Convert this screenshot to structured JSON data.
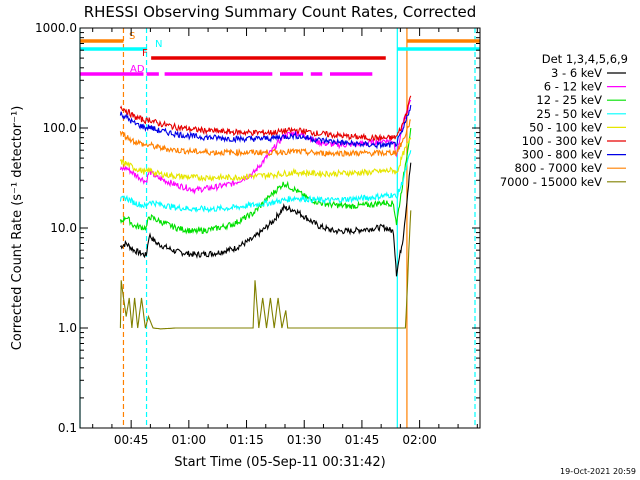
{
  "chart_data": {
    "type": "line",
    "title": "RHESSI Observing Summary Count Rates, Corrected",
    "xlabel": "Start Time (05-Sep-11 00:31:42)",
    "ylabel": "Corrected Count Rate (s⁻¹ detector⁻¹)",
    "yscale": "log",
    "ylim": [
      0.1,
      1000.0
    ],
    "xlim_minutes": [
      0,
      104
    ],
    "x_tick_labels": [
      "00:45",
      "01:00",
      "01:15",
      "01:30",
      "01:45",
      "02:00"
    ],
    "x_tick_minutes": [
      13.3,
      28.3,
      43.3,
      58.3,
      73.3,
      88.3
    ],
    "y_tick_labels": [
      "0.1",
      "1.0",
      "10.0",
      "100.0",
      "1000.0"
    ],
    "y_tick_values": [
      0.1,
      1.0,
      10.0,
      100.0,
      1000.0
    ],
    "legend_title": "Det 1,3,4,5,6,9",
    "legend_position": "right",
    "timestamp": "19-Oct-2021 20:59",
    "state_bars": [
      {
        "label": "S",
        "color": "#ff8000",
        "segments": [
          [
            0,
            11.3
          ],
          [
            85,
            104
          ]
        ]
      },
      {
        "label": "N",
        "color": "#00ffff",
        "segments": [
          [
            0,
            17.3
          ],
          [
            82.5,
            104
          ]
        ]
      },
      {
        "label": "F",
        "color": "#e60000",
        "segments": [
          [
            18.5,
            79.5
          ]
        ]
      },
      {
        "label": "AD",
        "color": "#ff00ff",
        "segments": [
          [
            0,
            16.5
          ],
          [
            17.3,
            20.5
          ],
          [
            22,
            50
          ],
          [
            52,
            58
          ],
          [
            60,
            63
          ],
          [
            65,
            76
          ]
        ]
      }
    ],
    "vertical_lines": [
      {
        "x": 0,
        "color": "#00ffff",
        "style": "solid"
      },
      {
        "x": 11.3,
        "color": "#ff8000",
        "style": "dashed"
      },
      {
        "x": 17.3,
        "color": "#00ffff",
        "style": "dashed"
      },
      {
        "x": 82.5,
        "color": "#00ffff",
        "style": "solid"
      },
      {
        "x": 85,
        "color": "#ff8000",
        "style": "solid"
      },
      {
        "x": 102.7,
        "color": "#00ffff",
        "style": "dashed"
      }
    ],
    "series": [
      {
        "name": "3 - 6 keV",
        "color": "#000000",
        "x": [
          10.5,
          12,
          14,
          17.2,
          18,
          20,
          25,
          30,
          35,
          40,
          45,
          50,
          53,
          56,
          59,
          62,
          66,
          70,
          75,
          79,
          81.5,
          82.3,
          84,
          86
        ],
        "y": [
          6.5,
          7,
          6,
          5.3,
          8.5,
          7,
          5.8,
          5.4,
          5.6,
          6.2,
          7.8,
          11.5,
          16,
          15,
          12.5,
          10.5,
          9.3,
          9.3,
          9.8,
          10.2,
          9.2,
          3.5,
          8,
          45
        ]
      },
      {
        "name": "6 - 12 keV",
        "color": "#ff00ff",
        "x": [
          10.5,
          12,
          14,
          17.2,
          18,
          20,
          25,
          30,
          35,
          40,
          45,
          50,
          53,
          56,
          59,
          62,
          66,
          70,
          75,
          79,
          81.5,
          82.3,
          84,
          86
        ],
        "y": [
          38,
          40,
          35,
          29,
          37,
          32,
          27,
          24,
          25.5,
          28,
          35,
          60,
          84,
          90,
          82,
          72,
          68,
          68,
          71,
          75,
          74,
          55,
          110,
          190
        ]
      },
      {
        "name": "12 - 25 keV",
        "color": "#00e000",
        "x": [
          10.5,
          12,
          14,
          17.2,
          18,
          20,
          25,
          30,
          35,
          40,
          45,
          50,
          53,
          56,
          59,
          62,
          66,
          70,
          75,
          79,
          81.5,
          82.3,
          84,
          86
        ],
        "y": [
          11.5,
          13,
          10.5,
          10,
          13,
          12,
          10,
          9.2,
          9.8,
          11,
          14,
          22,
          28,
          24,
          20,
          18,
          17,
          16.5,
          17,
          18,
          17.5,
          11,
          30,
          100
        ]
      },
      {
        "name": "25 - 50 keV",
        "color": "#00ffff",
        "x": [
          10.5,
          12,
          14,
          17.2,
          18,
          20,
          25,
          30,
          35,
          40,
          45,
          50,
          53,
          56,
          59,
          62,
          66,
          70,
          75,
          79,
          81.5,
          82.3,
          84,
          86
        ],
        "y": [
          19,
          20,
          18,
          16.5,
          18.5,
          17.5,
          16,
          15.5,
          15.5,
          16,
          17,
          18,
          19,
          20,
          19.5,
          19,
          19,
          19.5,
          20,
          21,
          21.5,
          20,
          30,
          60
        ]
      },
      {
        "name": "50 - 100 keV",
        "color": "#e6e600",
        "x": [
          10.5,
          12,
          14,
          17.2,
          18,
          20,
          25,
          30,
          35,
          40,
          45,
          50,
          53,
          56,
          59,
          62,
          66,
          70,
          75,
          79,
          81.5,
          82.3,
          84,
          86
        ],
        "y": [
          46,
          44,
          40,
          36,
          38,
          35,
          33,
          32,
          32,
          32,
          33,
          34,
          35,
          36,
          35.5,
          35,
          35,
          35.5,
          36,
          37,
          38,
          35,
          55,
          80
        ]
      },
      {
        "name": "100 - 300 keV",
        "color": "#e60000",
        "x": [
          10.5,
          12,
          14,
          17.2,
          18,
          20,
          25,
          30,
          35,
          40,
          45,
          50,
          53,
          56,
          59,
          62,
          66,
          70,
          75,
          79,
          81.5,
          82.3,
          84,
          86
        ],
        "y": [
          165,
          150,
          130,
          118,
          122,
          112,
          102,
          96,
          93,
          91,
          90,
          90,
          93,
          95,
          92,
          88,
          85,
          82,
          80,
          79,
          80,
          82,
          110,
          210
        ]
      },
      {
        "name": "300 - 800 keV",
        "color": "#0000e6",
        "x": [
          10.5,
          12,
          14,
          17.2,
          18,
          20,
          25,
          30,
          35,
          40,
          45,
          50,
          53,
          56,
          59,
          62,
          66,
          70,
          75,
          79,
          81.5,
          82.3,
          84,
          86
        ],
        "y": [
          140,
          128,
          112,
          100,
          103,
          95,
          87,
          82,
          80,
          78,
          78,
          79,
          82,
          84,
          80,
          76,
          73,
          70,
          68,
          67,
          68,
          70,
          95,
          170
        ]
      },
      {
        "name": "800 - 7000 keV",
        "color": "#ff8000",
        "x": [
          10.5,
          12,
          14,
          17.2,
          18,
          20,
          25,
          30,
          35,
          40,
          45,
          50,
          53,
          56,
          59,
          62,
          66,
          70,
          75,
          79,
          81.5,
          82.3,
          84,
          86
        ],
        "y": [
          90,
          82,
          74,
          67,
          68,
          64,
          60,
          58,
          57,
          57,
          57,
          57,
          58,
          58,
          57,
          56,
          56,
          56,
          56,
          56,
          57,
          57,
          75,
          120
        ]
      },
      {
        "name": "7000 - 15000 keV",
        "color": "#808000",
        "x": [
          10.5,
          10.7,
          11.3,
          12,
          12.8,
          13.5,
          14.2,
          15,
          16,
          17,
          17.8,
          19,
          21,
          25,
          30,
          45,
          45.5,
          46.5,
          47.5,
          48.5,
          49.5,
          50.5,
          51.5,
          52.5,
          53.5,
          54,
          56,
          60,
          70,
          80,
          84.6,
          85,
          85.5,
          86
        ],
        "y": [
          1.0,
          3.0,
          2.0,
          1.3,
          2.0,
          1.0,
          2.0,
          1.0,
          2.0,
          1.0,
          1.3,
          1.0,
          0.98,
          1.0,
          1.0,
          1.0,
          3.0,
          1.0,
          2.0,
          1.0,
          2.0,
          1.0,
          2.0,
          1.0,
          1.5,
          1.0,
          1.0,
          1.0,
          1.0,
          1.0,
          1.0,
          2.0,
          6.0,
          15.0
        ]
      }
    ]
  }
}
